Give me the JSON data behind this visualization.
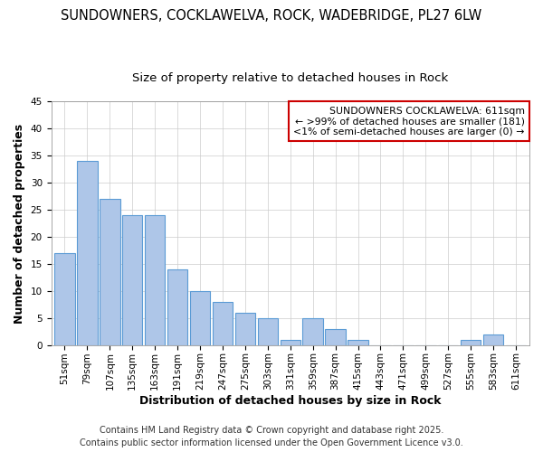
{
  "title1": "SUNDOWNERS, COCKLAWELVA, ROCK, WADEBRIDGE, PL27 6LW",
  "title2": "Size of property relative to detached houses in Rock",
  "xlabel": "Distribution of detached houses by size in Rock",
  "ylabel": "Number of detached properties",
  "categories": [
    "51sqm",
    "79sqm",
    "107sqm",
    "135sqm",
    "163sqm",
    "191sqm",
    "219sqm",
    "247sqm",
    "275sqm",
    "303sqm",
    "331sqm",
    "359sqm",
    "387sqm",
    "415sqm",
    "443sqm",
    "471sqm",
    "499sqm",
    "527sqm",
    "555sqm",
    "583sqm",
    "611sqm"
  ],
  "values": [
    17,
    34,
    27,
    24,
    24,
    14,
    10,
    8,
    6,
    5,
    1,
    5,
    3,
    1,
    0,
    0,
    0,
    0,
    1,
    2,
    0
  ],
  "bar_color": "#aec6e8",
  "bar_edge_color": "#5b9bd5",
  "box_text_line1": "SUNDOWNERS COCKLAWELVA: 611sqm",
  "box_text_line2": "← >99% of detached houses are smaller (181)",
  "box_text_line3": "<1% of semi-detached houses are larger (0) →",
  "box_color": "#ffffff",
  "box_edge_color": "#cc0000",
  "ylim": [
    0,
    45
  ],
  "yticks": [
    0,
    5,
    10,
    15,
    20,
    25,
    30,
    35,
    40,
    45
  ],
  "footer_line1": "Contains HM Land Registry data © Crown copyright and database right 2025.",
  "footer_line2": "Contains public sector information licensed under the Open Government Licence v3.0.",
  "title_fontsize": 10.5,
  "subtitle_fontsize": 9.5,
  "axis_label_fontsize": 9,
  "tick_fontsize": 7.5,
  "footer_fontsize": 7,
  "annotation_fontsize": 7.8
}
